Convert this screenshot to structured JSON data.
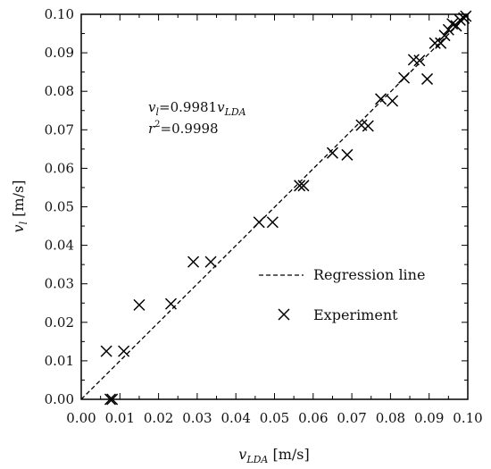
{
  "chart_data": {
    "type": "scatter",
    "xlabel": {
      "var": "v",
      "sub": "LDA",
      "unit": " [m/s]"
    },
    "ylabel": {
      "var": "v",
      "sub": "l",
      "unit": " [m/s]"
    },
    "xlim": [
      0.0,
      0.1
    ],
    "ylim": [
      0.0,
      0.1
    ],
    "xticks": [
      "0.00",
      "0.01",
      "0.02",
      "0.03",
      "0.04",
      "0.05",
      "0.06",
      "0.07",
      "0.08",
      "0.09",
      "0.10"
    ],
    "yticks": [
      "0.00",
      "0.01",
      "0.02",
      "0.03",
      "0.04",
      "0.05",
      "0.06",
      "0.07",
      "0.08",
      "0.09",
      "0.10"
    ],
    "grid": false,
    "legend_position": "bottom-right",
    "annotation": {
      "line1_var": "v",
      "line1_sub": "l",
      "line1_eq": "=0.9981",
      "line1_var2": "v",
      "line1_sub2": "LDA",
      "line2_var": "r",
      "line2_sup": "2",
      "line2_eq": "=0.9998"
    },
    "series": [
      {
        "name": "Regression line",
        "type": "line",
        "style": "dashed",
        "slope": 0.9981,
        "x": [
          0.0,
          0.1
        ]
      },
      {
        "name": "Experiment",
        "type": "scatter",
        "marker": "x",
        "points": [
          [
            0.0065,
            0.0125
          ],
          [
            0.0075,
            0.0
          ],
          [
            0.008,
            0.0
          ],
          [
            0.011,
            0.0125
          ],
          [
            0.015,
            0.0245
          ],
          [
            0.0232,
            0.0248
          ],
          [
            0.029,
            0.0357
          ],
          [
            0.0335,
            0.0357
          ],
          [
            0.046,
            0.046
          ],
          [
            0.0495,
            0.046
          ],
          [
            0.0565,
            0.0555
          ],
          [
            0.0575,
            0.0555
          ],
          [
            0.065,
            0.064
          ],
          [
            0.0688,
            0.0635
          ],
          [
            0.0725,
            0.0712
          ],
          [
            0.0742,
            0.071
          ],
          [
            0.0775,
            0.078
          ],
          [
            0.0805,
            0.0775
          ],
          [
            0.0835,
            0.0835
          ],
          [
            0.086,
            0.0882
          ],
          [
            0.0875,
            0.088
          ],
          [
            0.0895,
            0.0832
          ],
          [
            0.0915,
            0.0925
          ],
          [
            0.093,
            0.0925
          ],
          [
            0.094,
            0.0945
          ],
          [
            0.095,
            0.096
          ],
          [
            0.096,
            0.0975
          ],
          [
            0.097,
            0.097
          ],
          [
            0.098,
            0.0985
          ],
          [
            0.099,
            0.099
          ],
          [
            0.0995,
            0.0995
          ]
        ]
      }
    ]
  }
}
